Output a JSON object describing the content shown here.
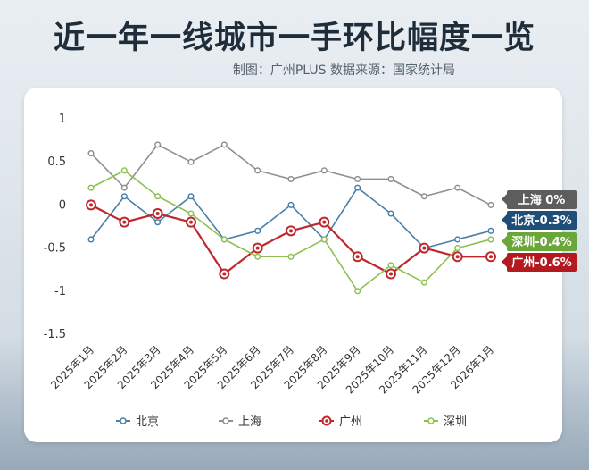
{
  "header": {
    "title": "近一年一线城市一手环比幅度一览",
    "subtitle": "制图：广州PLUS  数据来源：国家统计局"
  },
  "chart_data": {
    "type": "line",
    "x": [
      "2025年1月",
      "2025年2月",
      "2025年3月",
      "2025年4月",
      "2025年5月",
      "2025年6月",
      "2025年7月",
      "2025年8月",
      "2025年9月",
      "2025年10月",
      "2025年11月",
      "2025年12月",
      "2026年1月"
    ],
    "yticks": [
      "1",
      "0.5",
      "0",
      "-0.5",
      "-1",
      "-1.5"
    ],
    "ylim": [
      -1.5,
      1
    ],
    "grid": false,
    "legend_position": "bottom",
    "series": [
      {
        "name": "北京",
        "color": "#4a7fa8",
        "marker": "circle",
        "values": [
          -0.4,
          0.1,
          -0.2,
          0.1,
          -0.4,
          -0.3,
          0,
          -0.4,
          0.2,
          -0.1,
          -0.5,
          -0.4,
          -0.3
        ]
      },
      {
        "name": "上海",
        "color": "#8f8f8f",
        "marker": "circle",
        "values": [
          0.6,
          0.2,
          0.7,
          0.5,
          0.7,
          0.4,
          0.3,
          0.4,
          0.3,
          0.3,
          0.1,
          0.2,
          0
        ]
      },
      {
        "name": "广州",
        "color": "#c0272d",
        "marker": "ring",
        "values": [
          0,
          -0.2,
          -0.1,
          -0.2,
          -0.8,
          -0.5,
          -0.3,
          -0.2,
          -0.6,
          -0.8,
          -0.5,
          -0.6,
          -0.6
        ]
      },
      {
        "name": "深圳",
        "color": "#8cc152",
        "marker": "circle",
        "values": [
          0.2,
          0.4,
          0.1,
          -0.1,
          -0.4,
          -0.6,
          -0.6,
          -0.4,
          -1,
          -0.7,
          -0.9,
          -0.5,
          -0.4
        ]
      }
    ],
    "end_labels": [
      {
        "text": "上海  0%",
        "color": "#5d5d5d"
      },
      {
        "text": "北京-0.3%",
        "color": "#1f4e79"
      },
      {
        "text": "深圳-0.4%",
        "color": "#6aa63a"
      },
      {
        "text": "广州-0.6%",
        "color": "#b3191f"
      }
    ]
  }
}
